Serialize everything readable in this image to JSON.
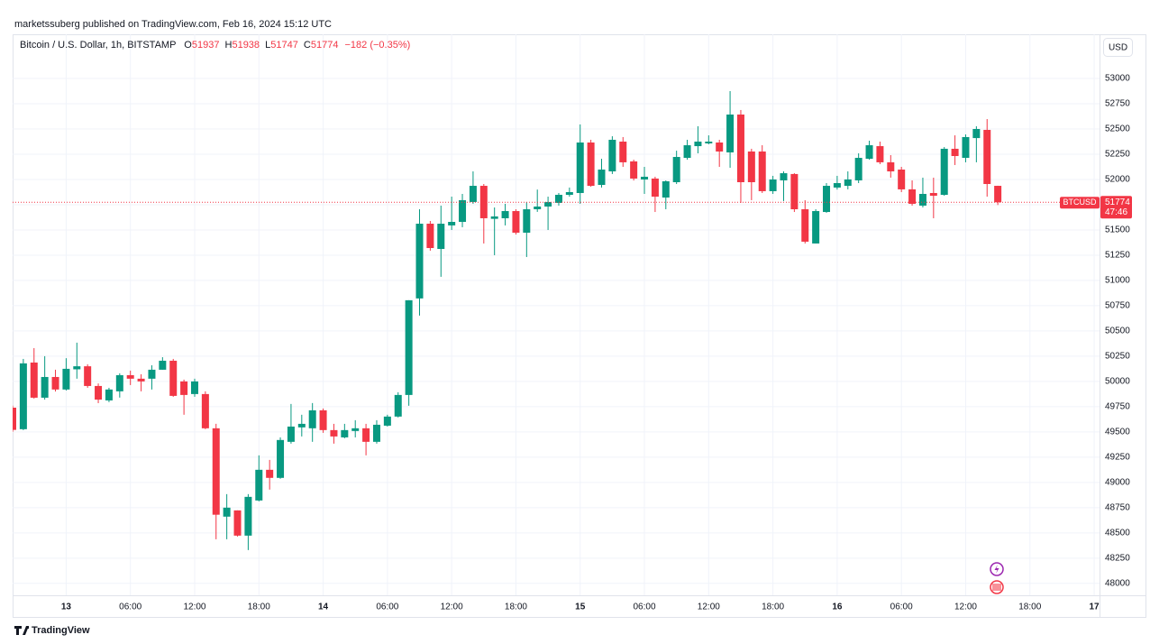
{
  "chart_data": {
    "type": "candlestick",
    "publisher": "marketssuberg published on TradingView.com, Feb 16, 2024 15:12 UTC",
    "title": "Bitcoin / U.S. Dollar, 1h, BITSTAMP",
    "ohlc_letters": [
      "O",
      "H",
      "L",
      "C"
    ],
    "change": "−182 (−0.35%)",
    "currency": "USD",
    "symbol": "BTCUSD",
    "countdown": "47:46",
    "brand": "TradingView",
    "up_color": "#089981",
    "down_color": "#f23645",
    "grid": true,
    "x": [
      "2024-02-12 19:00",
      "2024-02-12 20:00",
      "2024-02-12 21:00",
      "2024-02-12 22:00",
      "2024-02-12 23:00",
      "2024-02-13 00:00",
      "2024-02-13 01:00",
      "2024-02-13 02:00",
      "2024-02-13 03:00",
      "2024-02-13 04:00",
      "2024-02-13 05:00",
      "2024-02-13 06:00",
      "2024-02-13 07:00",
      "2024-02-13 08:00",
      "2024-02-13 09:00",
      "2024-02-13 10:00",
      "2024-02-13 11:00",
      "2024-02-13 12:00",
      "2024-02-13 13:00",
      "2024-02-13 14:00",
      "2024-02-13 15:00",
      "2024-02-13 16:00",
      "2024-02-13 17:00",
      "2024-02-13 18:00",
      "2024-02-13 19:00",
      "2024-02-13 20:00",
      "2024-02-13 21:00",
      "2024-02-13 22:00",
      "2024-02-13 23:00",
      "2024-02-14 00:00",
      "2024-02-14 01:00",
      "2024-02-14 02:00",
      "2024-02-14 03:00",
      "2024-02-14 04:00",
      "2024-02-14 05:00",
      "2024-02-14 06:00",
      "2024-02-14 07:00",
      "2024-02-14 08:00",
      "2024-02-14 09:00",
      "2024-02-14 10:00",
      "2024-02-14 11:00",
      "2024-02-14 12:00",
      "2024-02-14 13:00",
      "2024-02-14 14:00",
      "2024-02-14 15:00",
      "2024-02-14 16:00",
      "2024-02-14 17:00",
      "2024-02-14 18:00",
      "2024-02-14 19:00",
      "2024-02-14 20:00",
      "2024-02-14 21:00",
      "2024-02-14 22:00",
      "2024-02-14 23:00",
      "2024-02-15 00:00",
      "2024-02-15 01:00",
      "2024-02-15 02:00",
      "2024-02-15 03:00",
      "2024-02-15 04:00",
      "2024-02-15 05:00",
      "2024-02-15 06:00",
      "2024-02-15 07:00",
      "2024-02-15 08:00",
      "2024-02-15 09:00",
      "2024-02-15 10:00",
      "2024-02-15 11:00",
      "2024-02-15 12:00",
      "2024-02-15 13:00",
      "2024-02-15 14:00",
      "2024-02-15 15:00",
      "2024-02-15 16:00",
      "2024-02-15 17:00",
      "2024-02-15 18:00",
      "2024-02-15 19:00",
      "2024-02-15 20:00",
      "2024-02-15 21:00",
      "2024-02-15 22:00",
      "2024-02-15 23:00",
      "2024-02-16 00:00",
      "2024-02-16 01:00",
      "2024-02-16 02:00",
      "2024-02-16 03:00",
      "2024-02-16 04:00",
      "2024-02-16 05:00",
      "2024-02-16 06:00",
      "2024-02-16 07:00",
      "2024-02-16 08:00",
      "2024-02-16 09:00",
      "2024-02-16 10:00",
      "2024-02-16 11:00",
      "2024-02-16 12:00",
      "2024-02-16 13:00",
      "2024-02-16 14:00",
      "2024-02-16 15:00"
    ],
    "candles": {
      "open": [
        49740,
        49527,
        50187,
        49839,
        50044,
        49920,
        50120,
        50150,
        49955,
        49812,
        49902,
        50062,
        50027,
        50027,
        50116,
        50205,
        50000,
        49875,
        49875,
        49536,
        48661,
        48723,
        48473,
        48821,
        49125,
        49045,
        49402,
        49545,
        49536,
        49714,
        49518,
        49446,
        49509,
        49536,
        49402,
        49562,
        49652,
        49866,
        50822,
        51562,
        51312,
        51545,
        51580,
        51777,
        51937,
        51610,
        51616,
        51687,
        51473,
        51705,
        51732,
        51768,
        51848,
        51866,
        52366,
        51946,
        52080,
        52375,
        52179,
        52000,
        52009,
        51821,
        51973,
        52214,
        52330,
        52357,
        52366,
        52268,
        52643,
        52277,
        52277,
        51884,
        51991,
        52054,
        51705,
        51366,
        51678,
        51920,
        51937,
        51991,
        52205,
        52330,
        52170,
        52098,
        51902,
        51741,
        51866,
        51848,
        52304,
        52214,
        52410,
        52491,
        51937
      ],
      "high": [
        49760,
        50223,
        50330,
        50250,
        50116,
        50230,
        50384,
        50170,
        49980,
        49937,
        50080,
        50107,
        50071,
        50160,
        50240,
        50223,
        50018,
        50027,
        49902,
        49580,
        48884,
        48723,
        48884,
        49268,
        49223,
        49446,
        49777,
        49670,
        49786,
        49732,
        49580,
        49580,
        49616,
        49580,
        49616,
        49670,
        49893,
        50804,
        51705,
        51589,
        51741,
        51830,
        51857,
        52080,
        51955,
        51723,
        51759,
        51705,
        51777,
        51900,
        51830,
        51866,
        51920,
        52545,
        52393,
        52205,
        52428,
        52420,
        52196,
        52125,
        52027,
        51991,
        52285,
        52393,
        52527,
        52437,
        52393,
        52875,
        52688,
        52304,
        52339,
        52036,
        52080,
        52062,
        51795,
        51705,
        51964,
        52036,
        52080,
        52259,
        52384,
        52375,
        52241,
        52125,
        51991,
        52018,
        52018,
        52321,
        52437,
        52446,
        52527,
        52598,
        51938
      ],
      "low": [
        49500,
        49518,
        49830,
        49820,
        49900,
        49910,
        50027,
        49937,
        49785,
        49795,
        49840,
        49964,
        49902,
        49920,
        50116,
        49848,
        49670,
        49848,
        49527,
        48437,
        48437,
        48464,
        48330,
        48812,
        48929,
        49036,
        49384,
        49455,
        49402,
        49491,
        49384,
        49437,
        49446,
        49268,
        49384,
        49553,
        49643,
        49759,
        50652,
        51295,
        51036,
        51500,
        51527,
        51759,
        51366,
        51250,
        51545,
        51455,
        51232,
        51679,
        51500,
        51741,
        51830,
        51759,
        51928,
        51920,
        52054,
        52125,
        51990,
        51857,
        51678,
        51705,
        51955,
        52196,
        52259,
        52348,
        52125,
        52116,
        51768,
        51795,
        51866,
        51857,
        51786,
        51678,
        51366,
        51366,
        51670,
        51900,
        51902,
        51964,
        52196,
        52152,
        52018,
        51875,
        51741,
        51723,
        51616,
        51839,
        52143,
        52170,
        52170,
        51830,
        51747
      ],
      "close": [
        49520,
        50179,
        49839,
        50044,
        49920,
        50125,
        50150,
        49955,
        49820,
        49920,
        50062,
        50027,
        50000,
        50116,
        50205,
        49857,
        49866,
        50000,
        49536,
        48680,
        48750,
        48473,
        48857,
        49125,
        49045,
        49420,
        49553,
        49580,
        49714,
        49518,
        49455,
        49518,
        49536,
        49402,
        49571,
        49652,
        49866,
        50804,
        51562,
        51321,
        51562,
        51580,
        51795,
        51937,
        51616,
        51634,
        51687,
        51473,
        51705,
        51732,
        51777,
        51848,
        51875,
        52366,
        51937,
        52098,
        52393,
        52170,
        52009,
        52027,
        51830,
        51982,
        52223,
        52339,
        52375,
        52375,
        52277,
        52643,
        51973,
        51973,
        51884,
        52000,
        52062,
        51705,
        51384,
        51687,
        51937,
        51964,
        52000,
        52214,
        52339,
        52170,
        52080,
        51902,
        51759,
        51857,
        51839,
        52304,
        52232,
        52420,
        52500,
        51955,
        51774
      ]
    },
    "xlim": [
      "2024-02-12 19:00",
      "2024-02-17 00:30"
    ],
    "xticks": [
      {
        "value": "2024-02-13 00:00",
        "label": "13"
      },
      {
        "value": "2024-02-13 06:00",
        "label": "06:00"
      },
      {
        "value": "2024-02-13 12:00",
        "label": "12:00"
      },
      {
        "value": "2024-02-13 18:00",
        "label": "18:00"
      },
      {
        "value": "2024-02-14 00:00",
        "label": "14"
      },
      {
        "value": "2024-02-14 06:00",
        "label": "06:00"
      },
      {
        "value": "2024-02-14 12:00",
        "label": "12:00"
      },
      {
        "value": "2024-02-14 18:00",
        "label": "18:00"
      },
      {
        "value": "2024-02-15 00:00",
        "label": "15"
      },
      {
        "value": "2024-02-15 06:00",
        "label": "06:00"
      },
      {
        "value": "2024-02-15 12:00",
        "label": "12:00"
      },
      {
        "value": "2024-02-15 18:00",
        "label": "18:00"
      },
      {
        "value": "2024-02-16 00:00",
        "label": "16"
      },
      {
        "value": "2024-02-16 06:00",
        "label": "06:00"
      },
      {
        "value": "2024-02-16 12:00",
        "label": "12:00"
      },
      {
        "value": "2024-02-16 18:00",
        "label": "18:00"
      },
      {
        "value": "2024-02-17 00:00",
        "label": "17"
      }
    ],
    "ylim": [
      47900,
      53420
    ],
    "yticks": [
      48000,
      48250,
      48500,
      48750,
      49000,
      49250,
      49500,
      49750,
      50000,
      50250,
      50500,
      50750,
      51000,
      51250,
      51500,
      51750,
      52000,
      52250,
      52500,
      52750,
      53000
    ]
  }
}
